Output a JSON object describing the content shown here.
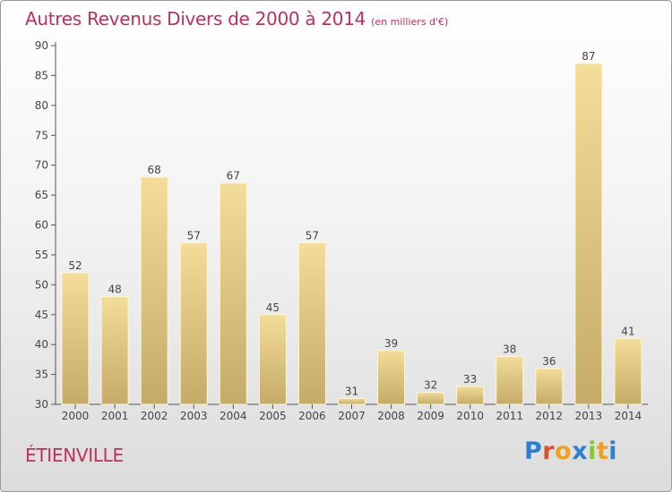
{
  "header": {
    "title": "Autres Revenus Divers de 2000 à 2014",
    "unit": "(en milliers d'€)"
  },
  "footer": {
    "commune": "ÉTIENVILLE",
    "logo_text": "Proxiti"
  },
  "colors": {
    "title": "#c0305a",
    "bar_light": "#f3dd98",
    "bar_dark": "#c4ab68",
    "logo": [
      "#2f7fd0",
      "#e24a2a",
      "#f0a020",
      "#2f7fd0",
      "#8ac43a",
      "#f0a020",
      "#2f7fd0"
    ]
  },
  "chart_data": {
    "type": "bar",
    "title": "Autres Revenus Divers de 2000 à 2014",
    "xlabel": "",
    "ylabel": "",
    "categories": [
      "2000",
      "2001",
      "2002",
      "2003",
      "2004",
      "2005",
      "2006",
      "2007",
      "2008",
      "2009",
      "2010",
      "2011",
      "2012",
      "2013",
      "2014"
    ],
    "values": [
      52,
      48,
      68,
      57,
      67,
      45,
      57,
      31,
      39,
      32,
      33,
      38,
      36,
      87,
      41
    ],
    "ylim": [
      30,
      90
    ],
    "yticks": [
      30,
      35,
      40,
      45,
      50,
      55,
      60,
      65,
      70,
      75,
      80,
      85,
      90
    ],
    "grid": false,
    "data_labels": true
  }
}
